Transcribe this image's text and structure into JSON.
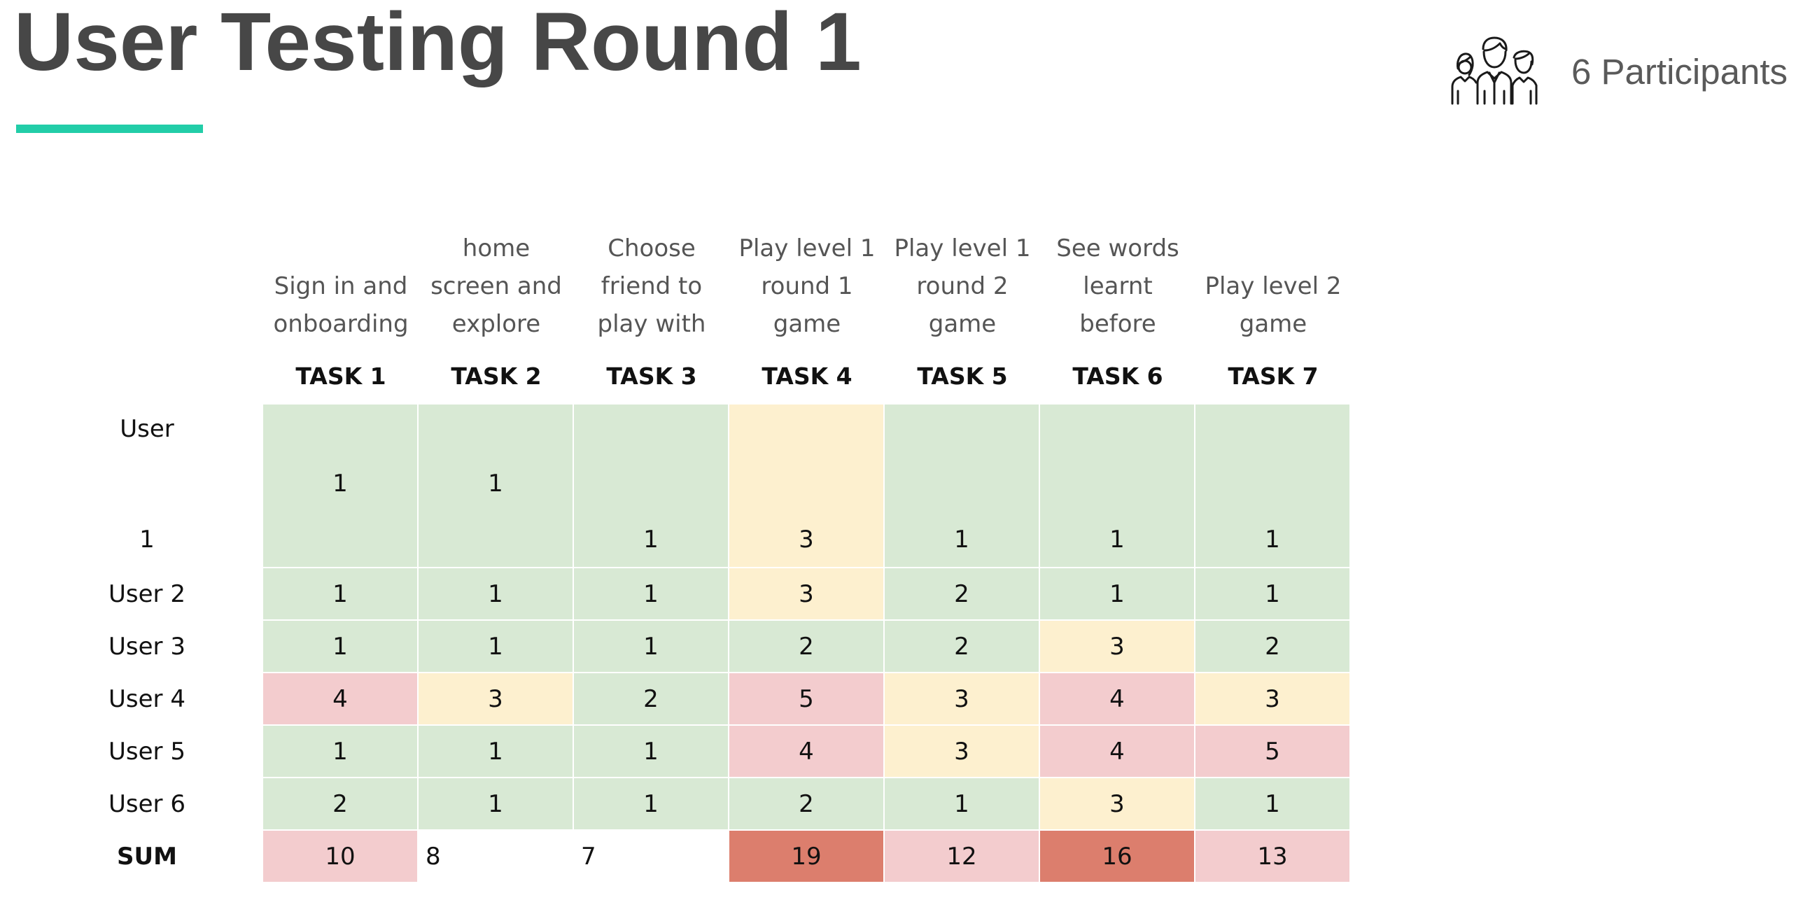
{
  "title": "User Testing Round 1",
  "participants": {
    "icon": "people-group-icon",
    "label": "6 Participants"
  },
  "colors": {
    "accent": "#22cda8",
    "green": "#d8e9d4",
    "yellow": "#fdf0cf",
    "pink": "#f3ccce",
    "red": "#dc7e6d",
    "white": "#ffffff"
  },
  "table": {
    "tasks": [
      {
        "description": [
          "Sign in and",
          "onboarding"
        ],
        "label": "TASK 1"
      },
      {
        "description": [
          "home",
          "screen and",
          "explore"
        ],
        "label": "TASK 2"
      },
      {
        "description": [
          "Choose",
          "friend to",
          "play with"
        ],
        "label": "TASK 3"
      },
      {
        "description": [
          "Play level 1",
          "round 1",
          "game"
        ],
        "label": "TASK 4"
      },
      {
        "description": [
          "Play level 1",
          "round 2",
          "game"
        ],
        "label": "TASK 5"
      },
      {
        "description": [
          "See words",
          "learnt",
          "before"
        ],
        "label": "TASK 6"
      },
      {
        "description": [
          "Play level 2",
          "game"
        ],
        "label": "TASK 7"
      }
    ],
    "rows": [
      {
        "label_lines": [
          "User",
          "1"
        ],
        "cells": [
          {
            "value": "1",
            "color": "green",
            "pos": "mid"
          },
          {
            "value": "1",
            "color": "green",
            "pos": "mid"
          },
          {
            "value": "1",
            "color": "green",
            "pos": "bottom"
          },
          {
            "value": "3",
            "color": "yellow",
            "pos": "bottom"
          },
          {
            "value": "1",
            "color": "green",
            "pos": "bottom"
          },
          {
            "value": "1",
            "color": "green",
            "pos": "bottom"
          },
          {
            "value": "1",
            "color": "green",
            "pos": "bottom"
          }
        ]
      },
      {
        "label": "User 2",
        "cells": [
          {
            "value": "1",
            "color": "green"
          },
          {
            "value": "1",
            "color": "green"
          },
          {
            "value": "1",
            "color": "green"
          },
          {
            "value": "3",
            "color": "yellow"
          },
          {
            "value": "2",
            "color": "green"
          },
          {
            "value": "1",
            "color": "green"
          },
          {
            "value": "1",
            "color": "green"
          }
        ]
      },
      {
        "label": "User 3",
        "cells": [
          {
            "value": "1",
            "color": "green"
          },
          {
            "value": "1",
            "color": "green"
          },
          {
            "value": "1",
            "color": "green"
          },
          {
            "value": "2",
            "color": "green"
          },
          {
            "value": "2",
            "color": "green"
          },
          {
            "value": "3",
            "color": "yellow"
          },
          {
            "value": "2",
            "color": "green"
          }
        ]
      },
      {
        "label": "User 4",
        "cells": [
          {
            "value": "4",
            "color": "pink"
          },
          {
            "value": "3",
            "color": "yellow"
          },
          {
            "value": "2",
            "color": "green"
          },
          {
            "value": "5",
            "color": "pink"
          },
          {
            "value": "3",
            "color": "yellow"
          },
          {
            "value": "4",
            "color": "pink"
          },
          {
            "value": "3",
            "color": "yellow"
          }
        ]
      },
      {
        "label": "User 5",
        "cells": [
          {
            "value": "1",
            "color": "green"
          },
          {
            "value": "1",
            "color": "green"
          },
          {
            "value": "1",
            "color": "green"
          },
          {
            "value": "4",
            "color": "pink"
          },
          {
            "value": "3",
            "color": "yellow"
          },
          {
            "value": "4",
            "color": "pink"
          },
          {
            "value": "5",
            "color": "pink"
          }
        ]
      },
      {
        "label": "User 6",
        "cells": [
          {
            "value": "2",
            "color": "green"
          },
          {
            "value": "1",
            "color": "green"
          },
          {
            "value": "1",
            "color": "green"
          },
          {
            "value": "2",
            "color": "green"
          },
          {
            "value": "1",
            "color": "green"
          },
          {
            "value": "3",
            "color": "yellow"
          },
          {
            "value": "1",
            "color": "green"
          }
        ]
      },
      {
        "label": "SUM",
        "bold": true,
        "cells": [
          {
            "value": "10",
            "color": "pink"
          },
          {
            "value": "8",
            "color": "white",
            "align": "left"
          },
          {
            "value": "7",
            "color": "white",
            "align": "left"
          },
          {
            "value": "19",
            "color": "red"
          },
          {
            "value": "12",
            "color": "pink"
          },
          {
            "value": "16",
            "color": "red"
          },
          {
            "value": "13",
            "color": "pink"
          }
        ]
      }
    ]
  }
}
